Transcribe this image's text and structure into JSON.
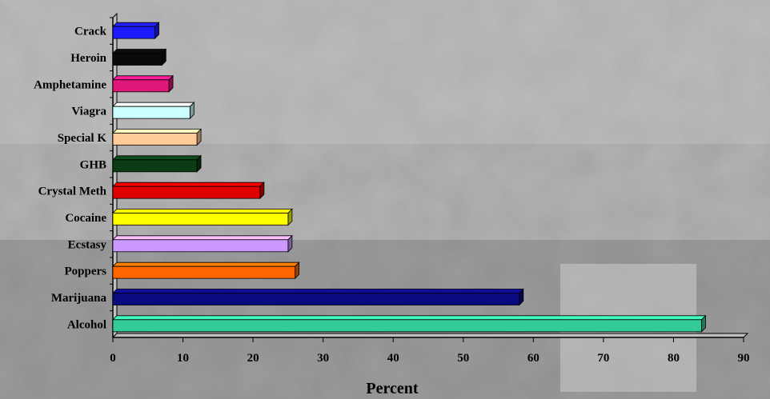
{
  "chart_data": {
    "type": "bar",
    "orientation": "horizontal",
    "title": "",
    "xlabel": "Percent",
    "ylabel": "",
    "xlim": [
      0,
      90
    ],
    "xticks": [
      0,
      10,
      20,
      30,
      40,
      50,
      60,
      70,
      80,
      90
    ],
    "grid": false,
    "categories": [
      "Crack",
      "Heroin",
      "Amphetamine",
      "Viagra",
      "Special K",
      "GHB",
      "Crystal Meth",
      "Cocaine",
      "Ecstasy",
      "Poppers",
      "Marijuana",
      "Alcohol"
    ],
    "values": [
      6,
      7,
      8,
      11,
      12,
      12,
      21,
      25,
      25,
      26,
      58,
      84
    ],
    "colors": [
      "#1a1aff",
      "#0a0a0a",
      "#e0187a",
      "#ccffff",
      "#ffcc99",
      "#0b3d14",
      "#e00000",
      "#ffff00",
      "#cc99ff",
      "#ff6600",
      "#0a0a80",
      "#33cc99"
    ]
  }
}
